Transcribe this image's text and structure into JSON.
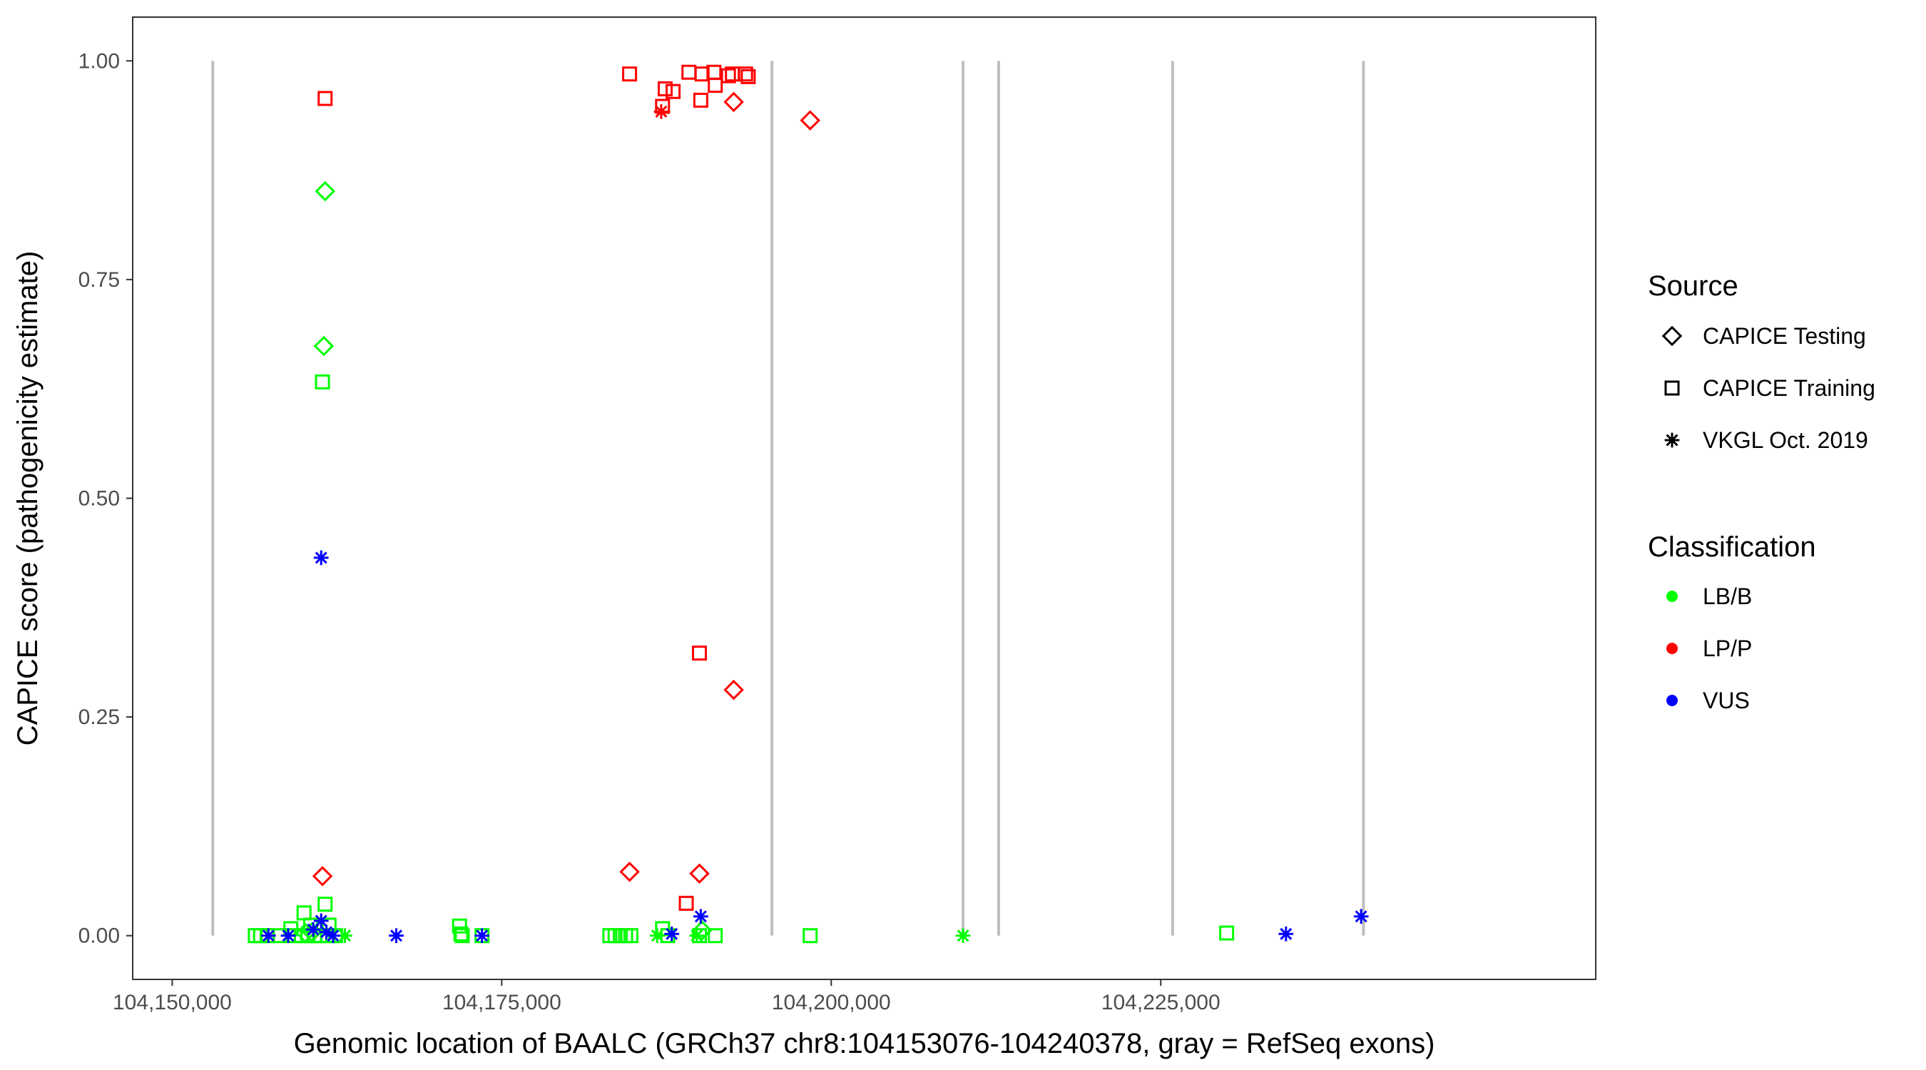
{
  "chart_data": {
    "type": "scatter",
    "xlabel": "Genomic location of BAALC (GRCh37 chr8:104153076-104240378, gray = RefSeq exons)",
    "ylabel": "CAPICE score (pathogenicity estimate)",
    "xlim": [
      104147000,
      104258000
    ],
    "ylim": [
      -0.05,
      1.05
    ],
    "x_ticks": [
      104150000,
      104175000,
      104200000,
      104225000
    ],
    "x_tick_labels": [
      "104,150,000",
      "104,175,000",
      "104,200,000",
      "104,225,000"
    ],
    "y_ticks": [
      0,
      0.25,
      0.5,
      0.75,
      1.0
    ],
    "y_tick_labels": [
      "0.00",
      "0.25",
      "0.50",
      "0.75",
      "1.00"
    ],
    "grid": false,
    "exon_lines_x": [
      104153076,
      104195500,
      104210000,
      104212700,
      104225900,
      104240378
    ],
    "legend_source": {
      "title": "Source",
      "entries": [
        {
          "label": "CAPICE Testing",
          "shape": "diamond"
        },
        {
          "label": "CAPICE Training",
          "shape": "square"
        },
        {
          "label": "VKGL Oct. 2019",
          "shape": "asterisk"
        }
      ]
    },
    "legend_classification": {
      "title": "Classification",
      "entries": [
        {
          "label": "LB/B",
          "color": "#00ff00"
        },
        {
          "label": "LP/P",
          "color": "#ff0000"
        },
        {
          "label": "VUS",
          "color": "#0000ff"
        }
      ]
    },
    "legend_position": "right",
    "colors": {
      "LB/B": "#00ff00",
      "LP/P": "#ff0000",
      "VUS": "#0000ff",
      "exon": "#bfbfbf"
    },
    "points": [
      {
        "x": 104161600,
        "y": 0.957,
        "source": "training",
        "class": "LP/P"
      },
      {
        "x": 104184700,
        "y": 0.985,
        "source": "training",
        "class": "LP/P"
      },
      {
        "x": 104187400,
        "y": 0.968,
        "source": "training",
        "class": "LP/P"
      },
      {
        "x": 104187200,
        "y": 0.948,
        "source": "training",
        "class": "LP/P"
      },
      {
        "x": 104188000,
        "y": 0.965,
        "source": "training",
        "class": "LP/P"
      },
      {
        "x": 104189200,
        "y": 0.987,
        "source": "training",
        "class": "LP/P"
      },
      {
        "x": 104190200,
        "y": 0.985,
        "source": "training",
        "class": "LP/P"
      },
      {
        "x": 104191100,
        "y": 0.987,
        "source": "training",
        "class": "LP/P"
      },
      {
        "x": 104190100,
        "y": 0.955,
        "source": "training",
        "class": "LP/P"
      },
      {
        "x": 104191200,
        "y": 0.972,
        "source": "training",
        "class": "LP/P"
      },
      {
        "x": 104192200,
        "y": 0.983,
        "source": "training",
        "class": "LP/P"
      },
      {
        "x": 104192500,
        "y": 0.985,
        "source": "training",
        "class": "LP/P"
      },
      {
        "x": 104193500,
        "y": 0.985,
        "source": "training",
        "class": "LP/P"
      },
      {
        "x": 104193700,
        "y": 0.982,
        "source": "training",
        "class": "LP/P"
      },
      {
        "x": 104190000,
        "y": 0.323,
        "source": "training",
        "class": "LP/P"
      },
      {
        "x": 104189000,
        "y": 0.037,
        "source": "training",
        "class": "LP/P"
      },
      {
        "x": 104187100,
        "y": 0.942,
        "source": "vkgl",
        "class": "LP/P"
      },
      {
        "x": 104192600,
        "y": 0.953,
        "source": "testing",
        "class": "LP/P"
      },
      {
        "x": 104198400,
        "y": 0.932,
        "source": "testing",
        "class": "LP/P"
      },
      {
        "x": 104192600,
        "y": 0.281,
        "source": "testing",
        "class": "LP/P"
      },
      {
        "x": 104184700,
        "y": 0.073,
        "source": "testing",
        "class": "LP/P"
      },
      {
        "x": 104190000,
        "y": 0.071,
        "source": "testing",
        "class": "LP/P"
      },
      {
        "x": 104161400,
        "y": 0.068,
        "source": "testing",
        "class": "LP/P"
      },
      {
        "x": 104161600,
        "y": 0.851,
        "source": "testing",
        "class": "LB/B"
      },
      {
        "x": 104161500,
        "y": 0.674,
        "source": "testing",
        "class": "LB/B"
      },
      {
        "x": 104161400,
        "y": 0.633,
        "source": "training",
        "class": "LB/B"
      },
      {
        "x": 104161600,
        "y": 0.036,
        "source": "training",
        "class": "LB/B"
      },
      {
        "x": 104160000,
        "y": 0.026,
        "source": "training",
        "class": "LB/B"
      },
      {
        "x": 104159000,
        "y": 0.008,
        "source": "training",
        "class": "LB/B"
      },
      {
        "x": 104160500,
        "y": 0.012,
        "source": "training",
        "class": "LB/B"
      },
      {
        "x": 104161900,
        "y": 0.012,
        "source": "training",
        "class": "LB/B"
      },
      {
        "x": 104156300,
        "y": 0.0,
        "source": "training",
        "class": "LB/B"
      },
      {
        "x": 104156700,
        "y": 0.0,
        "source": "training",
        "class": "LB/B"
      },
      {
        "x": 104157200,
        "y": 0.0,
        "source": "training",
        "class": "LB/B"
      },
      {
        "x": 104158200,
        "y": 0.0,
        "source": "training",
        "class": "LB/B"
      },
      {
        "x": 104159300,
        "y": 0.0,
        "source": "training",
        "class": "LB/B"
      },
      {
        "x": 104159800,
        "y": 0.0,
        "source": "training",
        "class": "LB/B"
      },
      {
        "x": 104160300,
        "y": 0.0,
        "source": "training",
        "class": "LB/B"
      },
      {
        "x": 104160800,
        "y": 0.0,
        "source": "training",
        "class": "LB/B"
      },
      {
        "x": 104161200,
        "y": 0.0,
        "source": "training",
        "class": "LB/B"
      },
      {
        "x": 104161800,
        "y": 0.0,
        "source": "training",
        "class": "LB/B"
      },
      {
        "x": 104162400,
        "y": 0.0,
        "source": "training",
        "class": "LB/B"
      },
      {
        "x": 104160100,
        "y": 0.003,
        "source": "testing",
        "class": "LB/B"
      },
      {
        "x": 104160600,
        "y": 0.004,
        "source": "testing",
        "class": "LB/B"
      },
      {
        "x": 104163100,
        "y": 0.0,
        "source": "vkgl",
        "class": "LB/B"
      },
      {
        "x": 104171800,
        "y": 0.011,
        "source": "training",
        "class": "LB/B"
      },
      {
        "x": 104171900,
        "y": 0.002,
        "source": "training",
        "class": "LB/B"
      },
      {
        "x": 104172000,
        "y": 0.0,
        "source": "training",
        "class": "LB/B"
      },
      {
        "x": 104173500,
        "y": 0.0,
        "source": "training",
        "class": "LB/B"
      },
      {
        "x": 104183200,
        "y": 0.0,
        "source": "training",
        "class": "LB/B"
      },
      {
        "x": 104183600,
        "y": 0.0,
        "source": "training",
        "class": "LB/B"
      },
      {
        "x": 104184000,
        "y": 0.0,
        "source": "training",
        "class": "LB/B"
      },
      {
        "x": 104184400,
        "y": 0.0,
        "source": "training",
        "class": "LB/B"
      },
      {
        "x": 104184800,
        "y": 0.0,
        "source": "training",
        "class": "LB/B"
      },
      {
        "x": 104187200,
        "y": 0.008,
        "source": "training",
        "class": "LB/B"
      },
      {
        "x": 104186800,
        "y": 0.0,
        "source": "vkgl",
        "class": "LB/B"
      },
      {
        "x": 104187600,
        "y": 0.0,
        "source": "training",
        "class": "LB/B"
      },
      {
        "x": 104190000,
        "y": 0.0,
        "source": "training",
        "class": "LB/B"
      },
      {
        "x": 104190200,
        "y": 0.006,
        "source": "testing",
        "class": "LB/B"
      },
      {
        "x": 104189800,
        "y": 0.0,
        "source": "vkgl",
        "class": "LB/B"
      },
      {
        "x": 104191200,
        "y": 0.0,
        "source": "training",
        "class": "LB/B"
      },
      {
        "x": 104198400,
        "y": 0.0,
        "source": "training",
        "class": "LB/B"
      },
      {
        "x": 104210000,
        "y": 0.0,
        "source": "vkgl",
        "class": "LB/B"
      },
      {
        "x": 104230000,
        "y": 0.003,
        "source": "training",
        "class": "LB/B"
      },
      {
        "x": 104161300,
        "y": 0.432,
        "source": "vkgl",
        "class": "VUS"
      },
      {
        "x": 104157300,
        "y": 0.0,
        "source": "vkgl",
        "class": "VUS"
      },
      {
        "x": 104158800,
        "y": 0.0,
        "source": "vkgl",
        "class": "VUS"
      },
      {
        "x": 104160700,
        "y": 0.007,
        "source": "vkgl",
        "class": "VUS"
      },
      {
        "x": 104161300,
        "y": 0.017,
        "source": "vkgl",
        "class": "VUS"
      },
      {
        "x": 104161700,
        "y": 0.004,
        "source": "vkgl",
        "class": "VUS"
      },
      {
        "x": 104162200,
        "y": 0.0,
        "source": "vkgl",
        "class": "VUS"
      },
      {
        "x": 104167000,
        "y": 0.0,
        "source": "vkgl",
        "class": "VUS"
      },
      {
        "x": 104173500,
        "y": 0.0,
        "source": "vkgl",
        "class": "VUS"
      },
      {
        "x": 104187900,
        "y": 0.002,
        "source": "vkgl",
        "class": "VUS"
      },
      {
        "x": 104190100,
        "y": 0.022,
        "source": "vkgl",
        "class": "VUS"
      },
      {
        "x": 104234500,
        "y": 0.002,
        "source": "vkgl",
        "class": "VUS"
      },
      {
        "x": 104240200,
        "y": 0.022,
        "source": "vkgl",
        "class": "VUS"
      }
    ]
  }
}
